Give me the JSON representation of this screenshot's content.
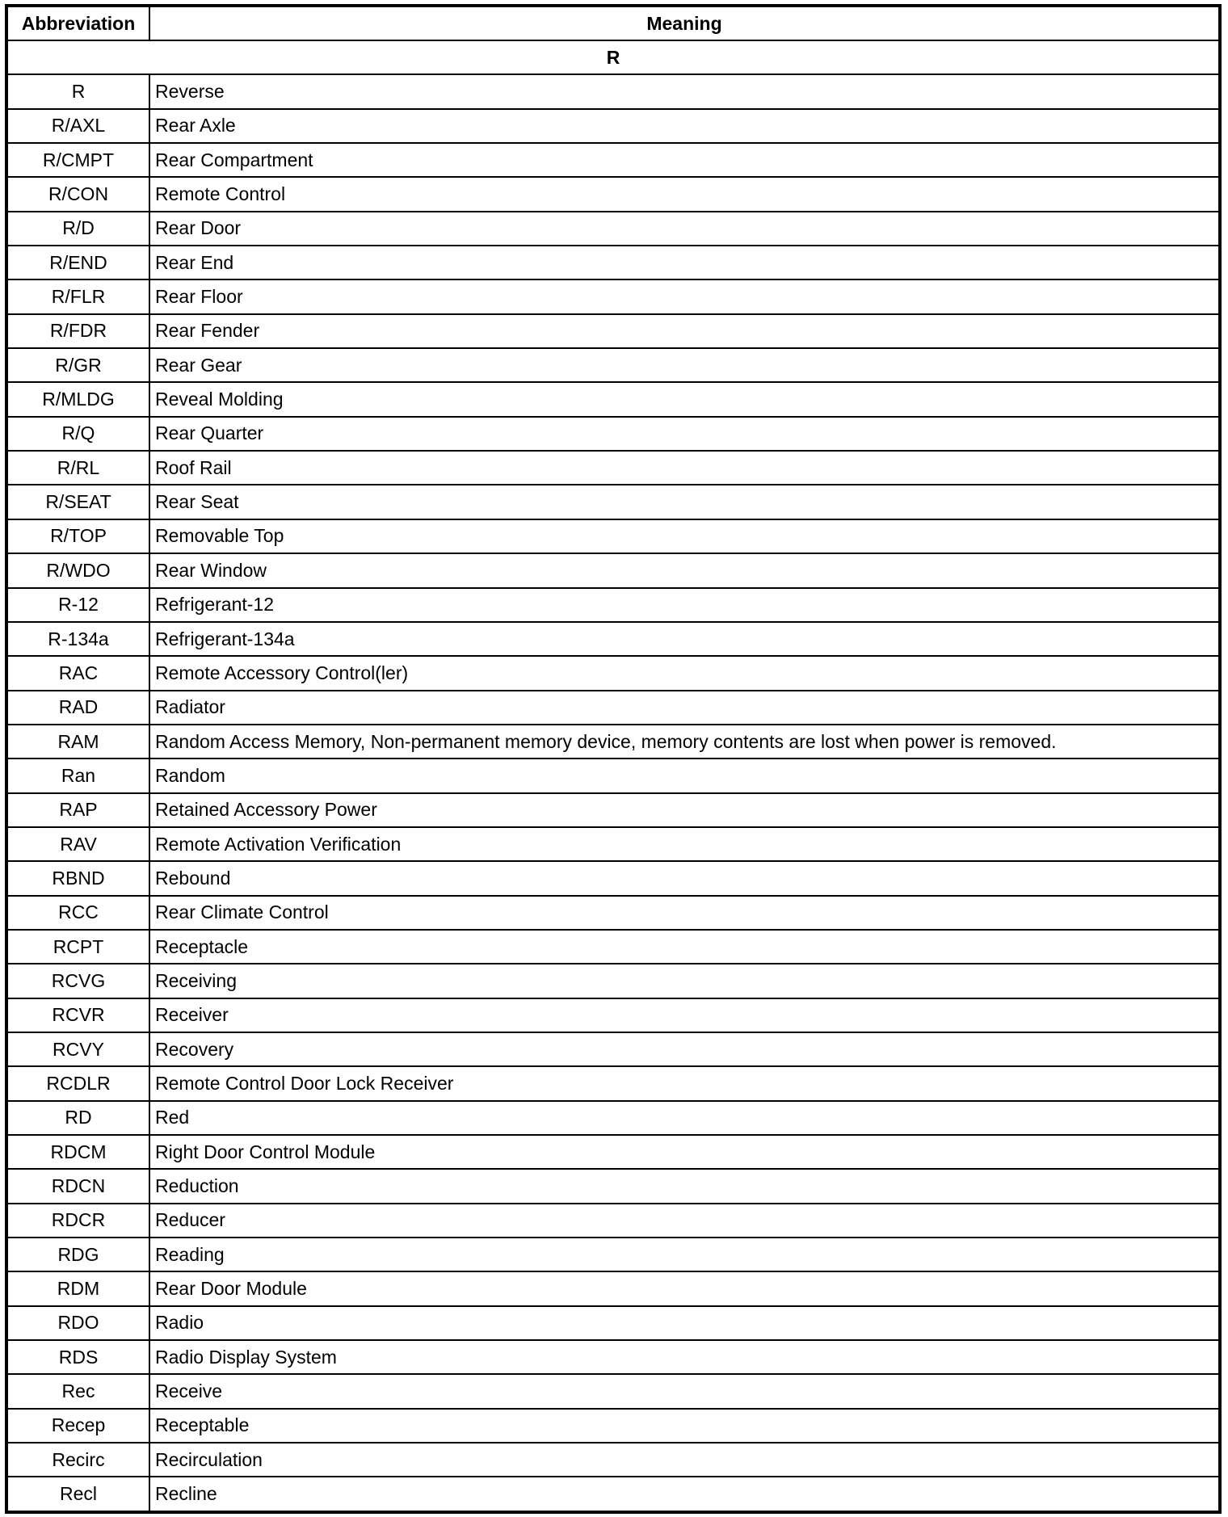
{
  "header": {
    "abbreviation": "Abbreviation",
    "meaning": "Meaning"
  },
  "section": "R",
  "rows": [
    {
      "abbr": "R",
      "meaning": "Reverse"
    },
    {
      "abbr": "R/AXL",
      "meaning": "Rear Axle"
    },
    {
      "abbr": "R/CMPT",
      "meaning": "Rear Compartment"
    },
    {
      "abbr": "R/CON",
      "meaning": "Remote Control"
    },
    {
      "abbr": "R/D",
      "meaning": "Rear Door"
    },
    {
      "abbr": "R/END",
      "meaning": "Rear End"
    },
    {
      "abbr": "R/FLR",
      "meaning": "Rear Floor"
    },
    {
      "abbr": "R/FDR",
      "meaning": "Rear Fender"
    },
    {
      "abbr": "R/GR",
      "meaning": "Rear Gear"
    },
    {
      "abbr": "R/MLDG",
      "meaning": "Reveal Molding"
    },
    {
      "abbr": "R/Q",
      "meaning": "Rear Quarter"
    },
    {
      "abbr": "R/RL",
      "meaning": "Roof Rail"
    },
    {
      "abbr": "R/SEAT",
      "meaning": "Rear Seat"
    },
    {
      "abbr": "R/TOP",
      "meaning": "Removable Top"
    },
    {
      "abbr": "R/WDO",
      "meaning": "Rear Window"
    },
    {
      "abbr": "R-12",
      "meaning": "Refrigerant-12"
    },
    {
      "abbr": "R-134a",
      "meaning": "Refrigerant-134a"
    },
    {
      "abbr": "RAC",
      "meaning": "Remote Accessory Control(ler)"
    },
    {
      "abbr": "RAD",
      "meaning": "Radiator"
    },
    {
      "abbr": "RAM",
      "meaning": "Random Access Memory, Non-permanent memory device, memory contents are lost when power is removed."
    },
    {
      "abbr": "Ran",
      "meaning": "Random"
    },
    {
      "abbr": "RAP",
      "meaning": "Retained Accessory Power"
    },
    {
      "abbr": "RAV",
      "meaning": "Remote Activation Verification"
    },
    {
      "abbr": "RBND",
      "meaning": "Rebound"
    },
    {
      "abbr": "RCC",
      "meaning": "Rear Climate Control"
    },
    {
      "abbr": "RCPT",
      "meaning": "Receptacle"
    },
    {
      "abbr": "RCVG",
      "meaning": "Receiving"
    },
    {
      "abbr": "RCVR",
      "meaning": "Receiver"
    },
    {
      "abbr": "RCVY",
      "meaning": "Recovery"
    },
    {
      "abbr": "RCDLR",
      "meaning": "Remote Control Door Lock Receiver"
    },
    {
      "abbr": "RD",
      "meaning": "Red"
    },
    {
      "abbr": "RDCM",
      "meaning": "Right Door Control Module"
    },
    {
      "abbr": "RDCN",
      "meaning": "Reduction"
    },
    {
      "abbr": "RDCR",
      "meaning": "Reducer"
    },
    {
      "abbr": "RDG",
      "meaning": "Reading"
    },
    {
      "abbr": "RDM",
      "meaning": "Rear Door Module"
    },
    {
      "abbr": "RDO",
      "meaning": "Radio"
    },
    {
      "abbr": "RDS",
      "meaning": "Radio Display System"
    },
    {
      "abbr": "Rec",
      "meaning": "Receive"
    },
    {
      "abbr": "Recep",
      "meaning": "Receptable"
    },
    {
      "abbr": "Recirc",
      "meaning": "Recirculation"
    },
    {
      "abbr": "Recl",
      "meaning": "Recline"
    }
  ]
}
